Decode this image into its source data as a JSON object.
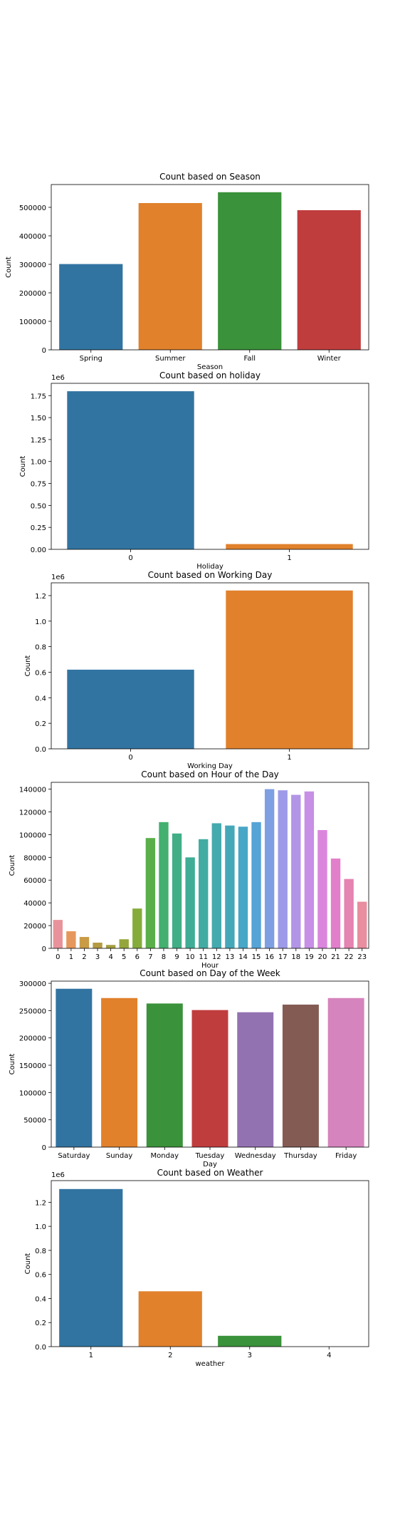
{
  "chart_data": [
    {
      "type": "bar",
      "title": "Count based on Season",
      "xlabel": "Season",
      "ylabel": "Count",
      "categories": [
        "Spring",
        "Summer",
        "Fall",
        "Winter"
      ],
      "values": [
        301000,
        515000,
        553000,
        490000
      ],
      "ylim": [
        0,
        580000
      ],
      "yticks": [
        0,
        100000,
        200000,
        300000,
        400000,
        500000
      ],
      "ytick_labels": [
        "0",
        "100000",
        "200000",
        "300000",
        "400000",
        "500000"
      ],
      "offset_label": "",
      "colors": [
        "#3274a1",
        "#e1812c",
        "#3a923a",
        "#c03d3e"
      ]
    },
    {
      "type": "bar",
      "title": "Count based on holiday",
      "xlabel": "Holiday",
      "ylabel": "Count",
      "categories": [
        "0",
        "1"
      ],
      "values": [
        1.8,
        0.06
      ],
      "ylim": [
        0,
        1.89
      ],
      "yticks": [
        0,
        0.25,
        0.5,
        0.75,
        1.0,
        1.25,
        1.5,
        1.75
      ],
      "ytick_labels": [
        "0.00",
        "0.25",
        "0.50",
        "0.75",
        "1.00",
        "1.25",
        "1.50",
        "1.75"
      ],
      "offset_label": "1e6",
      "colors": [
        "#3274a1",
        "#e1812c"
      ]
    },
    {
      "type": "bar",
      "title": "Count based on Working Day",
      "xlabel": "Working Day",
      "ylabel": "Count",
      "categories": [
        "0",
        "1"
      ],
      "values": [
        0.62,
        1.24
      ],
      "ylim": [
        0,
        1.3
      ],
      "yticks": [
        0,
        0.2,
        0.4,
        0.6,
        0.8,
        1.0,
        1.2
      ],
      "ytick_labels": [
        "0.0",
        "0.2",
        "0.4",
        "0.6",
        "0.8",
        "1.0",
        "1.2"
      ],
      "offset_label": "1e6",
      "colors": [
        "#3274a1",
        "#e1812c"
      ]
    },
    {
      "type": "bar",
      "title": "Count based on Hour of the Day",
      "xlabel": "Hour",
      "ylabel": "Count",
      "categories": [
        "0",
        "1",
        "2",
        "3",
        "4",
        "5",
        "6",
        "7",
        "8",
        "9",
        "10",
        "11",
        "12",
        "13",
        "14",
        "15",
        "16",
        "17",
        "18",
        "19",
        "20",
        "21",
        "22",
        "23"
      ],
      "values": [
        25000,
        15000,
        10000,
        5000,
        3000,
        8000,
        35000,
        97000,
        111000,
        101000,
        80000,
        96000,
        110000,
        108000,
        107000,
        111000,
        140000,
        139000,
        135000,
        138000,
        104000,
        79000,
        61000,
        41000
      ],
      "ylim": [
        0,
        146000
      ],
      "yticks": [
        0,
        20000,
        40000,
        60000,
        80000,
        100000,
        120000,
        140000
      ],
      "ytick_labels": [
        "0",
        "20000",
        "40000",
        "60000",
        "80000",
        "100000",
        "120000",
        "140000"
      ],
      "offset_label": "",
      "colors": [
        "#e8939b",
        "#e6975b",
        "#ca9b45",
        "#b49b41",
        "#a39f40",
        "#95a73c",
        "#85ac3a",
        "#5aaf4b",
        "#43b06f",
        "#41ae86",
        "#40ad96",
        "#42aca3",
        "#44aaae",
        "#45a8b9",
        "#48a6c6",
        "#56a3d6",
        "#7e9fe2",
        "#9d9be7",
        "#b395e6",
        "#c78fe5",
        "#db86dd",
        "#e27fcb",
        "#e583b1",
        "#e88ea0"
      ]
    },
    {
      "type": "bar",
      "title": "Count based on Day of the Week",
      "xlabel": "Day",
      "ylabel": "Count",
      "categories": [
        "Saturday",
        "Sunday",
        "Monday",
        "Tuesday",
        "Wednesday",
        "Thursday",
        "Friday"
      ],
      "values": [
        290000,
        273000,
        263000,
        251000,
        247000,
        261000,
        273000
      ],
      "ylim": [
        0,
        304000
      ],
      "yticks": [
        0,
        50000,
        100000,
        150000,
        200000,
        250000,
        300000
      ],
      "ytick_labels": [
        "0",
        "50000",
        "100000",
        "150000",
        "200000",
        "250000",
        "300000"
      ],
      "offset_label": "",
      "colors": [
        "#3274a1",
        "#e1812c",
        "#3a923a",
        "#c03d3e",
        "#9372b2",
        "#845b53",
        "#d684bd"
      ]
    },
    {
      "type": "bar",
      "title": "Count based on Weather",
      "xlabel": "weather",
      "ylabel": "Count",
      "categories": [
        "1",
        "2",
        "3",
        "4"
      ],
      "values": [
        1.31,
        0.46,
        0.09,
        0.0
      ],
      "ylim": [
        0,
        1.38
      ],
      "yticks": [
        0,
        0.2,
        0.4,
        0.6,
        0.8,
        1.0,
        1.2
      ],
      "ytick_labels": [
        "0.0",
        "0.2",
        "0.4",
        "0.6",
        "0.8",
        "1.0",
        "1.2"
      ],
      "offset_label": "1e6",
      "colors": [
        "#3274a1",
        "#e1812c",
        "#3a923a",
        "#c03d3e"
      ]
    }
  ]
}
